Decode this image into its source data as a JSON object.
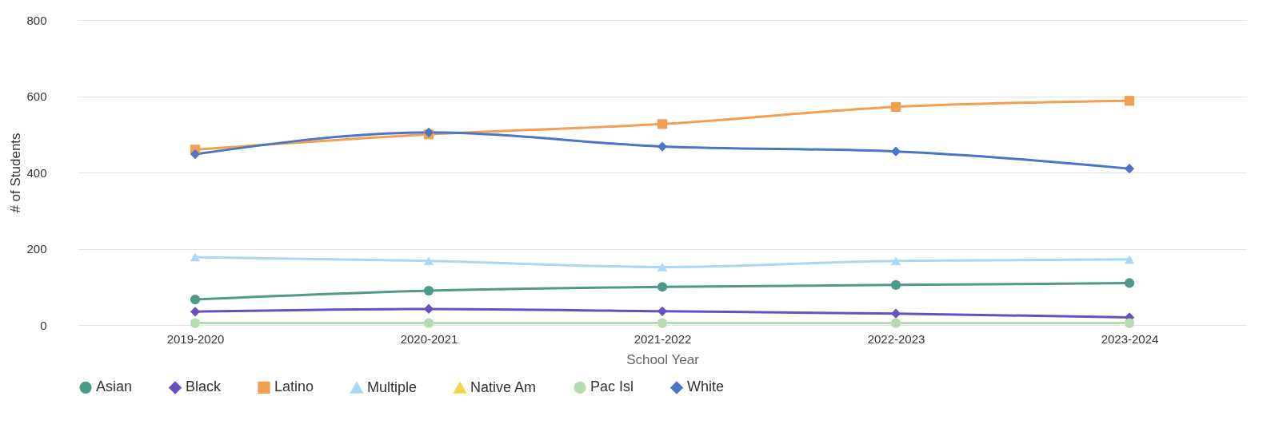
{
  "chart_data": {
    "type": "line",
    "xlabel": "School Year",
    "ylabel": "# of Students",
    "categories": [
      "2019-2020",
      "2020-2021",
      "2021-2022",
      "2022-2023",
      "2023-2024"
    ],
    "series": [
      {
        "name": "Asian",
        "color": "#4e9a8a",
        "marker": "circle",
        "values": [
          67,
          90,
          100,
          105,
          110
        ]
      },
      {
        "name": "Black",
        "color": "#6a4fc1",
        "marker": "diamond",
        "values": [
          35,
          42,
          36,
          30,
          20
        ]
      },
      {
        "name": "Latino",
        "color": "#f0a050",
        "marker": "square",
        "values": [
          460,
          500,
          527,
          572,
          588
        ]
      },
      {
        "name": "Multiple",
        "color": "#a6d8f7",
        "marker": "triangle",
        "values": [
          178,
          168,
          152,
          168,
          172
        ]
      },
      {
        "name": "Native Am",
        "color": "#f5d44a",
        "marker": "triangle",
        "values": [
          null,
          null,
          null,
          null,
          null
        ]
      },
      {
        "name": "Pac Isl",
        "color": "#b5dbb0",
        "marker": "circle",
        "values": [
          5,
          5,
          5,
          5,
          5
        ]
      },
      {
        "name": "White",
        "color": "#4a76c8",
        "marker": "diamond",
        "values": [
          448,
          505,
          468,
          455,
          410
        ]
      }
    ],
    "ylim": [
      0,
      800
    ],
    "yticks": [
      0,
      200,
      400,
      600,
      800
    ],
    "grid": "y",
    "legend": "bottom",
    "line_style": "solid"
  }
}
